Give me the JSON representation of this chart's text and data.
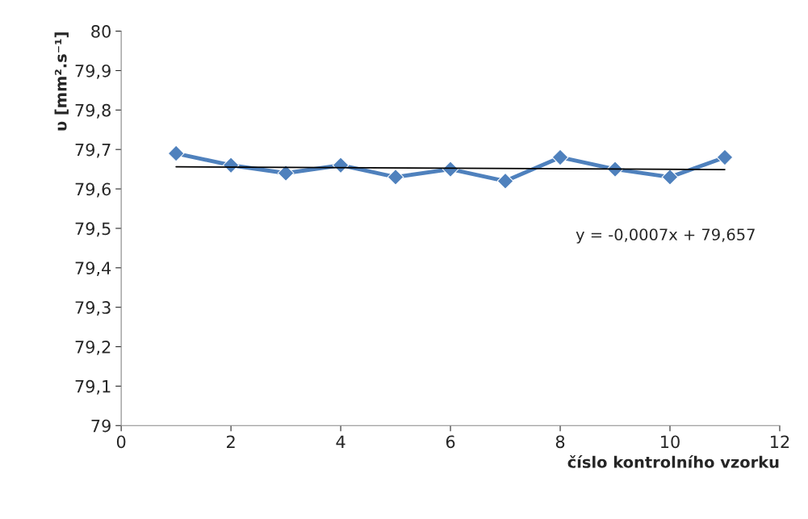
{
  "chart_data": {
    "type": "line",
    "xlabel": "číslo kontrolního vzorku",
    "ylabel": "υ [mm².s⁻¹]",
    "series": [
      {
        "color": "#4f81bd",
        "marker": "diamond",
        "x": [
          1,
          2,
          3,
          4,
          5,
          6,
          7,
          8,
          9,
          10,
          11
        ],
        "values": [
          79.69,
          79.66,
          79.64,
          79.66,
          79.63,
          79.65,
          79.62,
          79.68,
          79.65,
          79.63,
          79.68
        ]
      },
      {
        "color": "#000000",
        "marker": "none",
        "x": [
          1,
          11
        ],
        "values": [
          79.656,
          79.649
        ]
      }
    ],
    "annotations": [
      "y = -0,0007x + 79,657"
    ],
    "xlim": [
      0,
      12
    ],
    "xticks": [
      0,
      2,
      4,
      6,
      8,
      10,
      12
    ],
    "ylim": [
      79,
      80
    ],
    "yticks": [
      79,
      {
        "value": 79.1,
        "label": "79,1"
      },
      {
        "value": 79.2,
        "label": "79,2"
      },
      {
        "value": 79.3,
        "label": "79,3"
      },
      {
        "value": 79.4,
        "label": "79,4"
      },
      {
        "value": 79.5,
        "label": "79,5"
      },
      {
        "value": 79.6,
        "label": "79,6"
      },
      {
        "value": 79.7,
        "label": "79,7"
      },
      {
        "value": 79.8,
        "label": "79,8"
      },
      {
        "value": 79.9,
        "label": "79,9"
      },
      80
    ],
    "grid": false,
    "legend": false
  }
}
